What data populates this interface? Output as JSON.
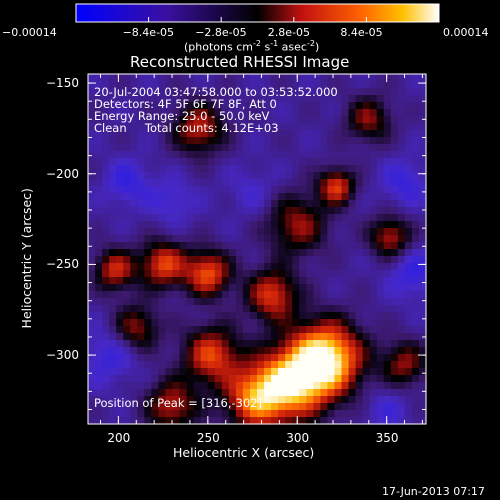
{
  "chart_data": {
    "type": "heatmap",
    "title": "Reconstructed RHESSI Image",
    "xlabel": "Heliocentric X (arcsec)",
    "ylabel": "Heliocentric Y (arcsec)",
    "xlim": [
      183,
      372
    ],
    "ylim": [
      -338,
      -145
    ],
    "xticks": [
      200,
      250,
      300,
      350
    ],
    "yticks": [
      -150,
      -200,
      -250,
      -300
    ],
    "colorbar": {
      "range": [
        -0.00014,
        0.00014
      ],
      "tick_labels": [
        "-0.00014",
        "-8.4e-05",
        "-2.8e-05",
        "2.8e-05",
        "8.4e-05",
        "0.00014"
      ],
      "tick_values": [
        -0.00014,
        -8.4e-05,
        -2.8e-05,
        2.8e-05,
        8.4e-05,
        0.00014
      ],
      "unit_label": "(photons cm",
      "unit_sup1": "-2",
      "unit_mid": " s",
      "unit_sup2": "-1",
      "unit_end": " asec",
      "unit_sup3": "-2",
      "unit_close": ")"
    },
    "info_lines": [
      "20-Jul-2004 03:47:58.000 to 03:53:52.000",
      "Detectors: 4F 5F 6F 7F 8F, Att 0",
      "Energy Range: 25.0 - 50.0 keV",
      "Clean     Total counts: 4.12E+03"
    ],
    "peak_label": "Position of Peak = [316,-302]",
    "peak": [
      316,
      -302
    ],
    "sources": [
      {
        "x": 316,
        "y": -302,
        "amp": 1.0,
        "s": 14
      },
      {
        "x": 296,
        "y": -316,
        "amp": 0.7,
        "s": 14
      },
      {
        "x": 276,
        "y": -324,
        "amp": 0.5,
        "s": 12
      },
      {
        "x": 252,
        "y": -300,
        "amp": 0.45,
        "s": 11
      },
      {
        "x": 250,
        "y": -255,
        "amp": 0.5,
        "s": 9
      },
      {
        "x": 225,
        "y": -250,
        "amp": 0.45,
        "s": 9
      },
      {
        "x": 198,
        "y": -253,
        "amp": 0.35,
        "s": 8
      },
      {
        "x": 286,
        "y": -267,
        "amp": 0.42,
        "s": 10
      },
      {
        "x": 322,
        "y": -207,
        "amp": 0.42,
        "s": 7
      },
      {
        "x": 245,
        "y": -175,
        "amp": 0.32,
        "s": 10
      },
      {
        "x": 352,
        "y": -235,
        "amp": 0.3,
        "s": 8
      },
      {
        "x": 300,
        "y": -228,
        "amp": 0.22,
        "s": 12
      },
      {
        "x": 230,
        "y": -328,
        "amp": 0.3,
        "s": 10
      },
      {
        "x": 360,
        "y": -305,
        "amp": 0.2,
        "s": 9
      },
      {
        "x": 210,
        "y": -285,
        "amp": 0.22,
        "s": 9
      },
      {
        "x": 340,
        "y": -170,
        "amp": 0.18,
        "s": 9
      },
      {
        "x": 205,
        "y": -205,
        "amp": -0.32,
        "s": 9
      },
      {
        "x": 230,
        "y": -215,
        "amp": -0.25,
        "s": 9
      },
      {
        "x": 360,
        "y": -205,
        "amp": -0.3,
        "s": 9
      },
      {
        "x": 365,
        "y": -255,
        "amp": -0.32,
        "s": 10
      },
      {
        "x": 195,
        "y": -300,
        "amp": -0.3,
        "s": 11
      },
      {
        "x": 350,
        "y": -330,
        "amp": -0.22,
        "s": 9
      },
      {
        "x": 275,
        "y": -210,
        "amp": -0.18,
        "s": 10
      }
    ]
  },
  "footer_timestamp": "17-Jun-2013 07:17"
}
